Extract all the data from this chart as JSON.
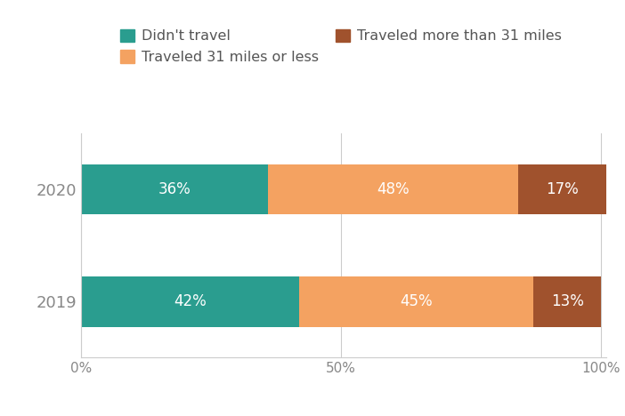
{
  "years": [
    "2019",
    "2020"
  ],
  "segments": [
    {
      "label": "Didn't travel",
      "color": "#2a9d8f",
      "values": [
        36,
        42
      ]
    },
    {
      "label": "Traveled 31 miles or less",
      "color": "#f4a261",
      "values": [
        48,
        45
      ]
    },
    {
      "label": "Traveled more than 31 miles",
      "color": "#a0522d",
      "values": [
        17,
        13
      ]
    }
  ],
  "label_color": "#ffffff",
  "label_fontsize": 12,
  "axis_tick_color": "#888888",
  "axis_line_color": "#cccccc",
  "background_color": "#ffffff",
  "xticks": [
    0,
    50,
    100
  ],
  "xtick_labels": [
    "0%",
    "50%",
    "100%"
  ],
  "bar_height": 0.45,
  "legend_fontsize": 11.5,
  "ytick_fontsize": 13,
  "xtick_fontsize": 11
}
